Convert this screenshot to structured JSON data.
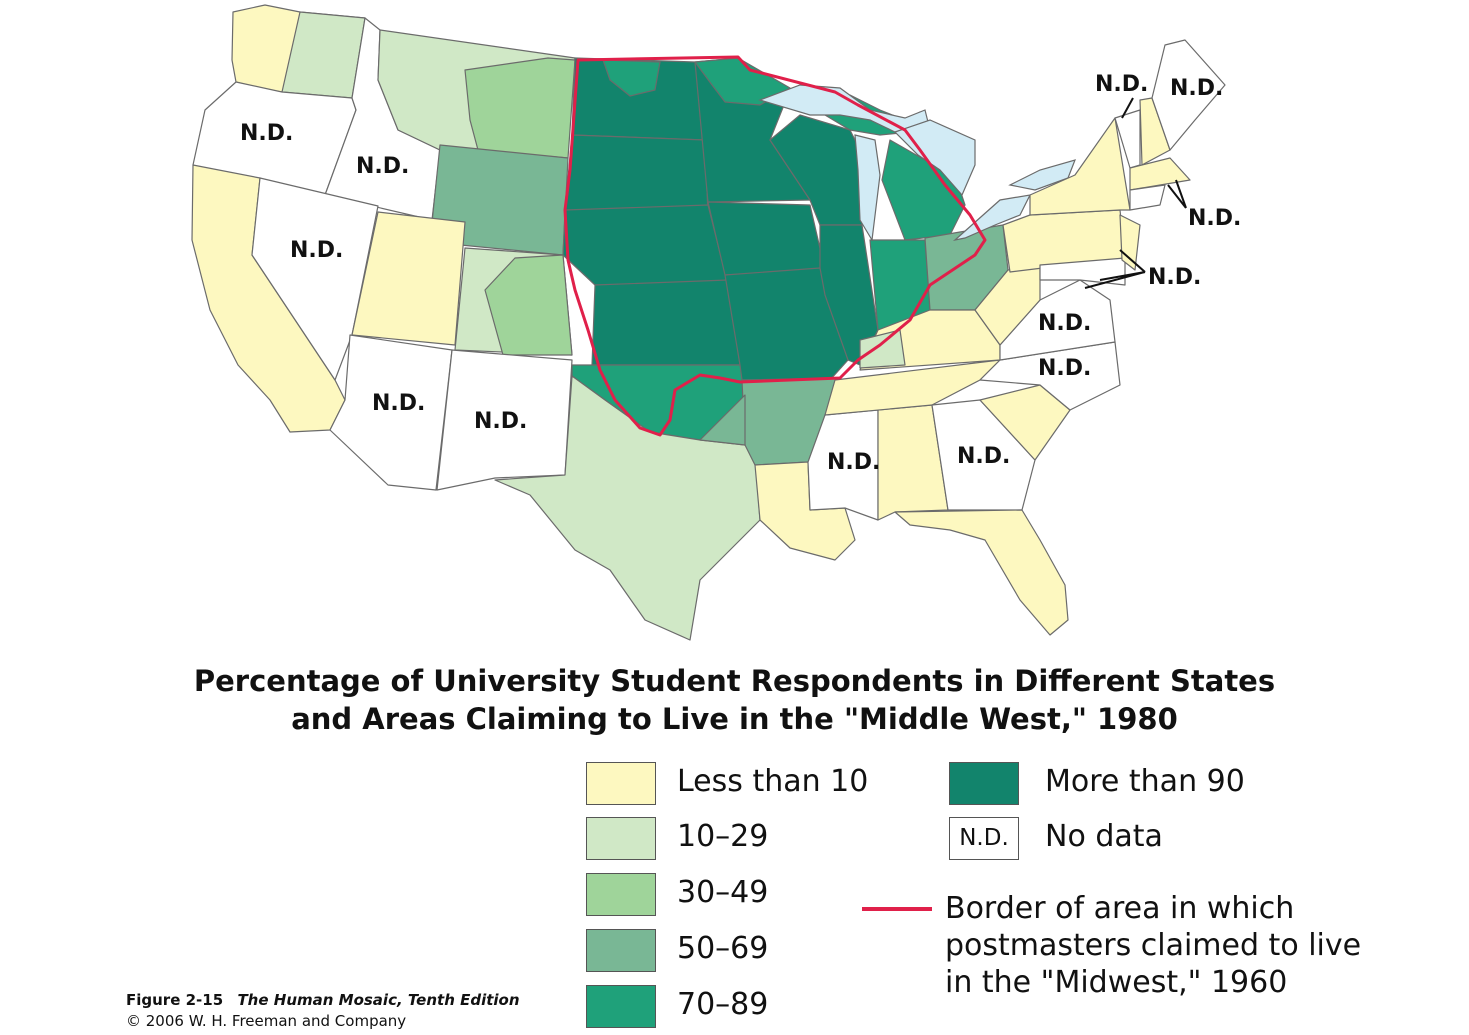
{
  "title_line1": "Percentage of University Student Respondents in Different States",
  "title_line2": "and Areas Claiming to Live in the \"Middle West,\" 1980",
  "nd_label": "N.D.",
  "legend": {
    "less_10": "Less than 10",
    "r10_29": "10–29",
    "r30_49": "30–49",
    "r50_69": "50–69",
    "r70_89": "70–89",
    "more_90": "More than 90",
    "nd_box": "N.D.",
    "no_data": "No data",
    "border": "Border of area in which postmasters claimed to live in the \"Midwest,\" 1960"
  },
  "colors": {
    "less_10": "#fdf8c0",
    "r10_29": "#d0e8c6",
    "r30_49": "#9fd49a",
    "r50_69": "#79b795",
    "r70_89": "#1fa17a",
    "more_90": "#12846c",
    "no_data": "#ffffff",
    "border": "#e0204a"
  },
  "figure_label": "Figure 2-15",
  "book_title": "The Human Mosaic, Tenth Edition",
  "copyright": "© 2006 W. H. Freeman and Company"
}
